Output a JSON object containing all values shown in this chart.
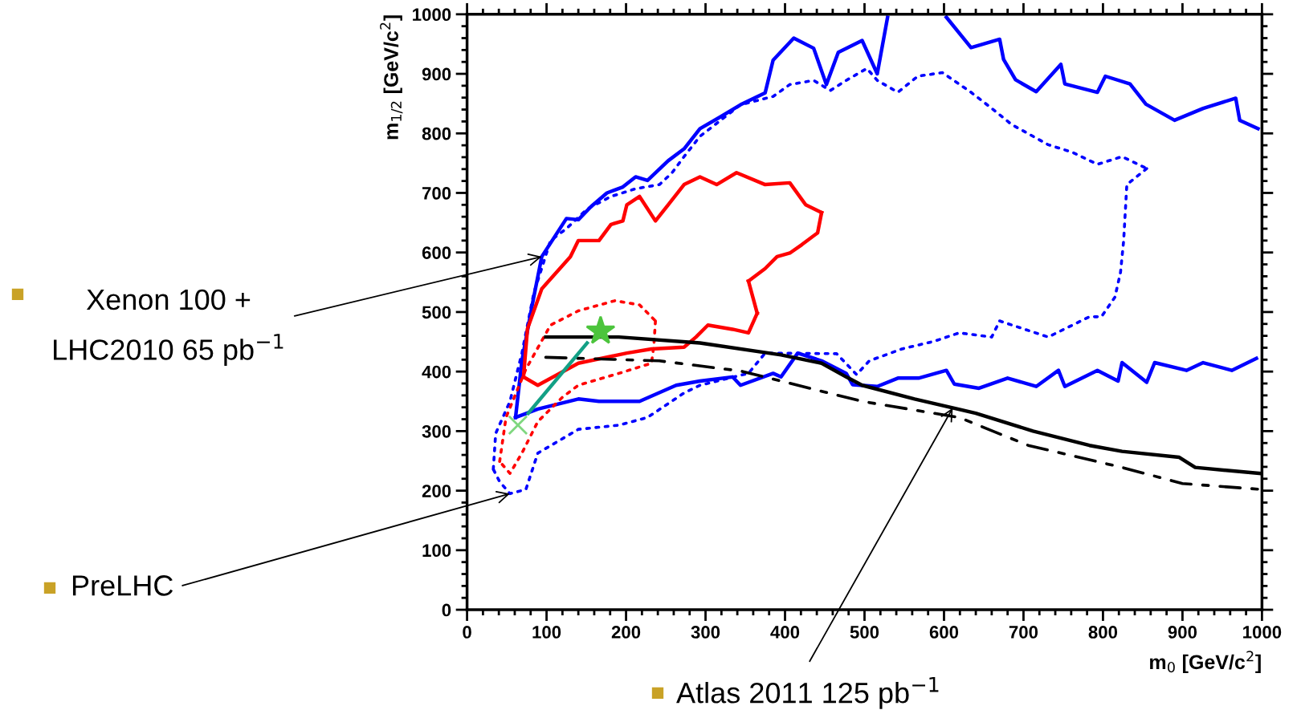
{
  "chart_data": {
    "type": "line",
    "xlabel": "m$_{0}$ [GeV/c$^{2}$]",
    "ylabel": "m$_{1/2}$ [GeV/c$^{2}$]",
    "xlim": [
      0,
      1000
    ],
    "ylim": [
      0,
      1000
    ],
    "xticks": [
      0,
      100,
      200,
      300,
      400,
      500,
      600,
      700,
      800,
      900,
      1000
    ],
    "yticks": [
      0,
      100,
      200,
      300,
      400,
      500,
      600,
      700,
      800,
      900,
      1000
    ],
    "series": [
      {
        "type": "line",
        "color": "#0000ff",
        "line_style": "solid",
        "x": [
          61,
          69,
          82,
          94,
          110,
          125,
          140,
          156,
          176,
          196,
          212,
          227,
          253,
          273,
          293,
          319,
          344,
          375,
          385,
          411,
          436,
          452,
          467,
          497,
          516,
          529
        ],
        "values": [
          323,
          418,
          512,
          593,
          626,
          657,
          655,
          677,
          700,
          710,
          727,
          721,
          754,
          774,
          808,
          828,
          848,
          868,
          923,
          960,
          943,
          882,
          936,
          956,
          900,
          995
        ]
      },
      {
        "type": "line",
        "color": "#0000ff",
        "line_style": "solid",
        "x": [
          603,
          634,
          670,
          675,
          690,
          716,
          747,
          752,
          793,
          803,
          834,
          854,
          890,
          926,
          967,
          972,
          995
        ],
        "values": [
          995,
          944,
          958,
          924,
          890,
          870,
          916,
          883,
          869,
          896,
          883,
          849,
          822,
          842,
          859,
          822,
          808
        ]
      },
      {
        "type": "line",
        "color": "#0000ff",
        "line_style": "solid",
        "x": [
          61,
          89,
          140,
          166,
          217,
          263,
          293,
          334,
          344,
          385,
          395,
          416,
          446,
          477,
          485,
          516,
          542,
          568,
          603,
          613,
          644,
          680,
          716,
          744,
          752,
          793,
          819,
          824,
          855,
          865,
          905,
          926,
          962,
          993
        ],
        "values": [
          323,
          337,
          354,
          350,
          350,
          377,
          384,
          391,
          377,
          397,
          391,
          431,
          418,
          397,
          378,
          375,
          389,
          389,
          402,
          379,
          372,
          389,
          375,
          402,
          375,
          402,
          384,
          415,
          382,
          415,
          402,
          415,
          402,
          422
        ]
      },
      {
        "type": "line",
        "color": "#0000ff",
        "line_style": "dotted",
        "x": [
          33,
          36,
          54,
          69,
          84,
          105,
          125,
          151,
          181,
          212,
          242,
          258,
          273,
          293,
          319,
          344,
          385,
          406,
          436,
          457,
          477,
          503,
          516,
          542,
          567,
          598,
          634,
          660,
          685,
          731,
          762,
          793,
          824,
          855
        ],
        "values": [
          236,
          296,
          350,
          431,
          532,
          620,
          640,
          673,
          694,
          707,
          714,
          734,
          761,
          795,
          822,
          848,
          862,
          882,
          889,
          872,
          889,
          909,
          889,
          869,
          896,
          902,
          869,
          842,
          815,
          781,
          768,
          748,
          761,
          741
        ]
      },
      {
        "type": "line",
        "color": "#0000ff",
        "line_style": "dotted",
        "x": [
          855,
          830,
          826,
          822,
          815,
          798,
          783,
          731,
          670,
          660,
          619,
          588,
          547,
          506,
          490,
          465,
          375,
          354,
          293,
          273,
          227,
          191,
          140,
          89,
          74,
          54,
          41,
          33
        ],
        "values": [
          741,
          714,
          620,
          566,
          525,
          492,
          492,
          458,
          485,
          458,
          465,
          451,
          438,
          418,
          395,
          430,
          431,
          397,
          377,
          364,
          323,
          310,
          303,
          263,
          202,
          195,
          215,
          236
        ]
      },
      {
        "type": "line",
        "color": "#ff0000",
        "line_style": "solid",
        "x": [
          71,
          76,
          94,
          130,
          140,
          166,
          181,
          196,
          201,
          217,
          237,
          253,
          273,
          293,
          314,
          339,
          375,
          406,
          426,
          446
        ],
        "values": [
          391,
          472,
          539,
          593,
          620,
          620,
          647,
          653,
          680,
          694,
          653,
          680,
          714,
          727,
          714,
          734,
          714,
          717,
          680,
          667
        ]
      },
      {
        "type": "line",
        "color": "#ff0000",
        "line_style": "solid",
        "x": [
          446,
          441,
          421,
          406,
          390,
          375,
          354
        ],
        "values": [
          667,
          633,
          613,
          599,
          593,
          573,
          552
        ]
      },
      {
        "type": "line",
        "color": "#ff0000",
        "line_style": "solid",
        "x": [
          354,
          365
        ],
        "values": [
          552,
          498
        ]
      },
      {
        "type": "line",
        "color": "#ff0000",
        "line_style": "solid",
        "x": [
          365,
          354,
          334,
          303,
          288,
          273,
          232,
          201,
          140,
          89,
          71
        ],
        "values": [
          498,
          465,
          471,
          478,
          458,
          441,
          438,
          431,
          414,
          377,
          391
        ]
      },
      {
        "type": "line",
        "color": "#ff0000",
        "line_style": "dotted",
        "x": [
          41,
          49,
          74,
          105,
          140,
          186,
          217,
          237
        ],
        "values": [
          249,
          323,
          404,
          478,
          502,
          519,
          512,
          485
        ]
      },
      {
        "type": "line",
        "color": "#ff0000",
        "line_style": "dotted",
        "x": [
          237,
          235,
          232,
          191,
          140,
          120,
          89,
          69,
          54,
          41
        ],
        "values": [
          485,
          444,
          414,
          397,
          377,
          357,
          316,
          263,
          229,
          249
        ]
      },
      {
        "type": "line",
        "color": "#000000",
        "line_style": "solid",
        "x": [
          99,
          191,
          293,
          395,
          446,
          477,
          497,
          563,
          640,
          712,
          783,
          824,
          896,
          916,
          997
        ],
        "values": [
          458,
          458,
          448,
          428,
          414,
          391,
          377,
          354,
          330,
          300,
          276,
          266,
          256,
          239,
          229
        ]
      },
      {
        "type": "line",
        "color": "#000000",
        "line_style": "dashdot",
        "x": [
          99,
          242,
          344,
          446,
          497,
          619,
          706,
          824,
          900,
          1000
        ],
        "values": [
          424,
          418,
          401,
          367,
          350,
          323,
          276,
          239,
          212,
          202
        ]
      },
      {
        "type": "line",
        "color": "#13a085",
        "line_style": "solid",
        "x": [
          77,
          151
        ],
        "values": [
          330,
          448
        ]
      },
      {
        "type": "scatter",
        "color": "#4cc43c",
        "marker": "star",
        "x": [
          168
        ],
        "values": [
          468
        ]
      },
      {
        "type": "scatter",
        "color": "#7fd77f",
        "marker": "cross",
        "x": [
          64
        ],
        "values": [
          310
        ]
      }
    ],
    "annotations": [
      {
        "text": "Xenon 100 +\nLHC2010 65 pb$^{−1}$",
        "x": 94,
        "y": 593
      },
      {
        "text": "PreLHC",
        "x": 54,
        "y": 195
      },
      {
        "text": "Atlas 2011 125 pb$^{−1}$",
        "x": 611,
        "y": 339
      }
    ]
  }
}
